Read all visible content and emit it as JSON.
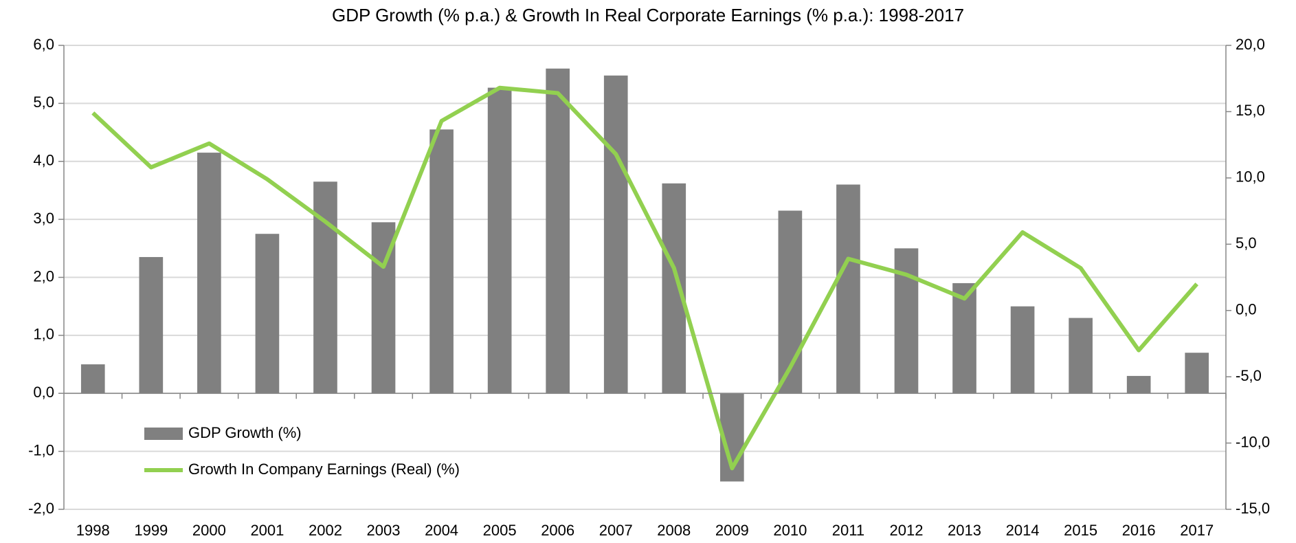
{
  "chart_data": {
    "type": "bar_line",
    "title": "GDP Growth (% p.a.) & Growth In Real Corporate Earnings (% p.a.): 1998-2017",
    "categories": [
      "1998",
      "1999",
      "2000",
      "2001",
      "2002",
      "2003",
      "2004",
      "2005",
      "2006",
      "2007",
      "2008",
      "2009",
      "2010",
      "2011",
      "2012",
      "2013",
      "2014",
      "2015",
      "2016",
      "2017"
    ],
    "series": [
      {
        "name": "GDP Growth (%)",
        "type": "bar",
        "color": "#808080",
        "values": [
          0.5,
          2.35,
          4.15,
          2.75,
          3.65,
          2.95,
          4.55,
          5.27,
          5.6,
          5.48,
          3.62,
          -1.52,
          3.15,
          3.6,
          2.5,
          1.9,
          1.5,
          1.3,
          0.3,
          0.7
        ]
      },
      {
        "name": "Growth In Company Earnings (Real) (%)",
        "type": "line",
        "axis": "y2",
        "color": "#92d050",
        "values": [
          14.9,
          10.8,
          12.6,
          9.9,
          6.7,
          3.3,
          14.3,
          16.8,
          16.4,
          11.8,
          3.2,
          -11.9,
          -4.3,
          3.9,
          2.7,
          0.9,
          5.9,
          3.2,
          -3.0,
          2.0
        ]
      }
    ],
    "ylim": [
      -2,
      6
    ],
    "yticks": [
      {
        "value": -2,
        "label": "-2,0"
      },
      {
        "value": -1,
        "label": "-1,0"
      },
      {
        "value": 0,
        "label": "0,0"
      },
      {
        "value": 1,
        "label": "1,0"
      },
      {
        "value": 2,
        "label": "2,0"
      },
      {
        "value": 3,
        "label": "3,0"
      },
      {
        "value": 4,
        "label": "4,0"
      },
      {
        "value": 5,
        "label": "5,0"
      },
      {
        "value": 6,
        "label": "6,0"
      }
    ],
    "y2lim": [
      -15,
      20
    ],
    "y2ticks": [
      {
        "value": -15,
        "label": "-15,0"
      },
      {
        "value": -10,
        "label": "-10,0"
      },
      {
        "value": -5,
        "label": "-5,0"
      },
      {
        "value": 0,
        "label": "0,0"
      },
      {
        "value": 5,
        "label": "5,0"
      },
      {
        "value": 10,
        "label": "10,0"
      },
      {
        "value": 15,
        "label": "15,0"
      },
      {
        "value": 20,
        "label": "20,0"
      }
    ],
    "grid": true,
    "legend": "lower left"
  }
}
